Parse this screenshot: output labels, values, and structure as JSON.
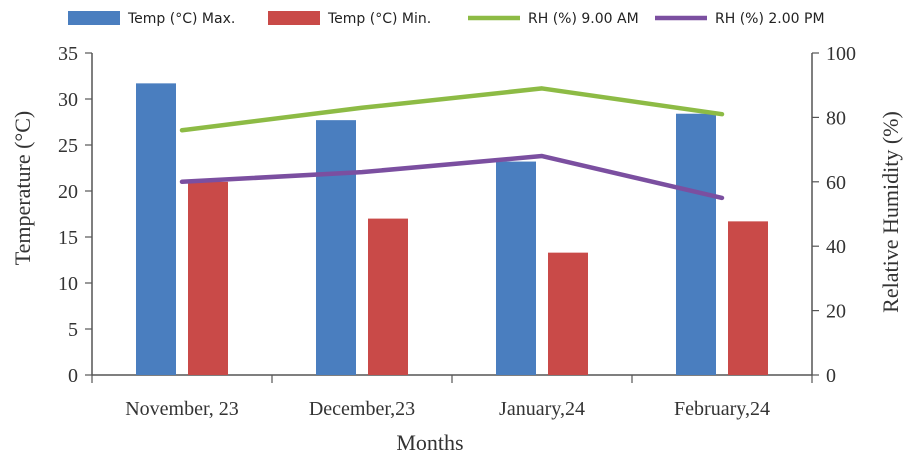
{
  "chart_data": {
    "type": "bar",
    "categories": [
      "November, 23",
      "December,23",
      "January,24",
      "February,24"
    ],
    "series": [
      {
        "name": "Temp (°C) Max.",
        "type": "bar",
        "axis": "left",
        "color": "#4a7ebf",
        "values": [
          31.7,
          27.7,
          23.2,
          28.4
        ]
      },
      {
        "name": "Temp (°C) Min.",
        "type": "bar",
        "axis": "left",
        "color": "#c94a48",
        "values": [
          21.0,
          17.0,
          13.3,
          16.7
        ]
      },
      {
        "name": "RH (%) 9.00 AM",
        "type": "line",
        "axis": "right",
        "color": "#8dbb45",
        "values": [
          76,
          83,
          89,
          81
        ]
      },
      {
        "name": "RH (%) 2.00 PM",
        "type": "line",
        "axis": "right",
        "color": "#7b4fa0",
        "values": [
          60,
          63,
          68,
          55
        ]
      }
    ],
    "xlabel": "Months",
    "ylabel": "Temperature (°C)",
    "y2label": "Relative Humidity (%)",
    "ylim": [
      0,
      35
    ],
    "y2lim": [
      0,
      100
    ],
    "yticks": [
      "0",
      "5",
      "10",
      "15",
      "20",
      "25",
      "30",
      "35"
    ],
    "y2ticks": [
      "0",
      "20",
      "40",
      "60",
      "80",
      "100"
    ],
    "grid": false,
    "legend_position": "top"
  }
}
